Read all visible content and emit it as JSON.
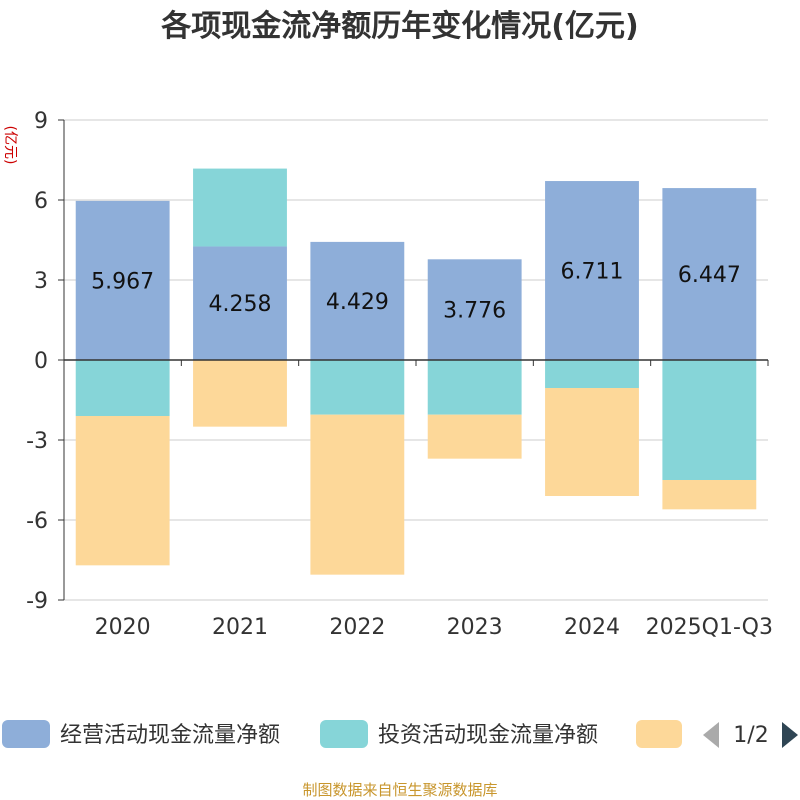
{
  "title": "各项现金流净额历年变化情况(亿元)",
  "source": "制图数据来自恒生聚源数据库",
  "pager": {
    "text": "1/2"
  },
  "colors": {
    "operating": "#8eaed9",
    "investing": "#86d5d8",
    "financing": "#fdd899"
  },
  "chart_data": {
    "type": "bar",
    "stacked": true,
    "title": "各项现金流净额历年变化情况(亿元)",
    "ylabel": "(亿元)",
    "xlabel": "",
    "ylim": [
      -9,
      9
    ],
    "yticks": [
      -9,
      -6,
      -3,
      0,
      3,
      6,
      9
    ],
    "categories": [
      "2020",
      "2021",
      "2022",
      "2023",
      "2024",
      "2025Q1-Q3"
    ],
    "series": [
      {
        "name": "经营活动现金流量净额",
        "color": "#8eaed9",
        "values": [
          5.967,
          4.258,
          4.429,
          3.776,
          6.711,
          6.447
        ],
        "labels": [
          "5.967",
          "4.258",
          "4.429",
          "3.776",
          "6.711",
          "6.447"
        ]
      },
      {
        "name": "投资活动现金流量净额",
        "color": "#86d5d8",
        "values": [
          -2.1,
          2.92,
          -2.05,
          -2.05,
          -1.05,
          -4.5
        ]
      },
      {
        "name": "",
        "color": "#fdd899",
        "values": [
          -5.6,
          -2.5,
          -6.0,
          -1.65,
          -4.05,
          -1.1
        ]
      }
    ],
    "legend": {
      "position": "bottom",
      "entries": [
        "经营活动现金流量净额",
        "投资活动现金流量净额",
        ""
      ]
    }
  }
}
